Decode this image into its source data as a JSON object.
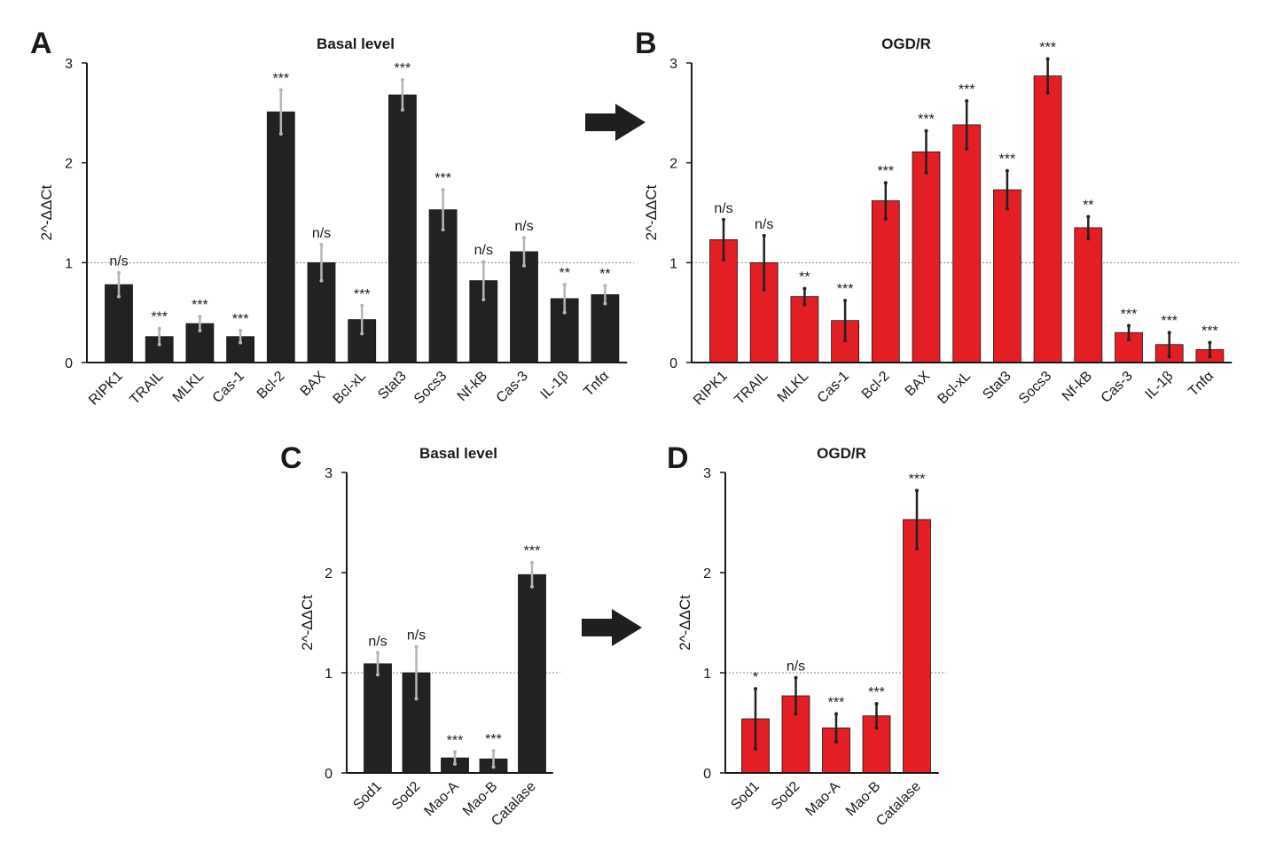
{
  "chart_data": [
    {
      "panel": "A",
      "type": "bar",
      "title": "Basal level",
      "ylabel": "2^-ΔΔCt",
      "ylim": [
        0,
        3
      ],
      "yticks": [
        "0",
        "1",
        "2",
        "3"
      ],
      "reference_line": 1,
      "color": "#222222",
      "error_color": "#b5b5b5",
      "categories": [
        "RIPK1",
        "TRAIL",
        "MLKL",
        "Cas-1",
        "Bcl-2",
        "BAX",
        "Bcl-xL",
        "Stat3",
        "Socs3",
        "Nf-kB",
        "Cas-3",
        "IL-1β",
        "Tnfα"
      ],
      "values": [
        0.78,
        0.26,
        0.39,
        0.26,
        2.51,
        1.0,
        0.43,
        2.68,
        1.53,
        0.82,
        1.11,
        0.64,
        0.68
      ],
      "errors": [
        0.12,
        0.08,
        0.07,
        0.06,
        0.22,
        0.18,
        0.14,
        0.15,
        0.2,
        0.19,
        0.14,
        0.14,
        0.09
      ],
      "significance": [
        "n/s",
        "***",
        "***",
        "***",
        "***",
        "n/s",
        "***",
        "***",
        "***",
        "n/s",
        "n/s",
        "**",
        "**"
      ]
    },
    {
      "panel": "B",
      "type": "bar",
      "title": "OGD/R",
      "ylabel": "2^-ΔΔCt",
      "ylim": [
        0,
        3
      ],
      "yticks": [
        "0",
        "1",
        "2",
        "3"
      ],
      "reference_line": 1,
      "color": "#e31e24",
      "error_color": "#222222",
      "categories": [
        "RIPK1",
        "TRAIL",
        "MLKL",
        "Cas-1",
        "Bcl-2",
        "BAX",
        "Bcl-xL",
        "Stat3",
        "Socs3",
        "Nf-kB",
        "Cas-3",
        "IL-1β",
        "Tnfα"
      ],
      "values": [
        1.23,
        1.0,
        0.66,
        0.42,
        1.62,
        2.11,
        2.38,
        1.73,
        2.87,
        1.35,
        0.3,
        0.18,
        0.13
      ],
      "errors": [
        0.2,
        0.27,
        0.08,
        0.2,
        0.18,
        0.21,
        0.24,
        0.19,
        0.17,
        0.11,
        0.07,
        0.12,
        0.07
      ],
      "significance": [
        "n/s",
        "n/s",
        "**",
        "***",
        "***",
        "***",
        "***",
        "***",
        "***",
        "**",
        "***",
        "***",
        "***"
      ]
    },
    {
      "panel": "C",
      "type": "bar",
      "title": "Basal level",
      "ylabel": "2^-ΔΔCt",
      "ylim": [
        0,
        3
      ],
      "yticks": [
        "0",
        "1",
        "2",
        "3"
      ],
      "reference_line": 1,
      "color": "#222222",
      "error_color": "#b5b5b5",
      "categories": [
        "Sod1",
        "Sod2",
        "Mao-A",
        "Mao-B",
        "Catalase"
      ],
      "values": [
        1.09,
        1.0,
        0.15,
        0.14,
        1.98
      ],
      "errors": [
        0.11,
        0.26,
        0.06,
        0.08,
        0.12
      ],
      "significance": [
        "n/s",
        "n/s",
        "***",
        "***",
        "***"
      ]
    },
    {
      "panel": "D",
      "type": "bar",
      "title": "OGD/R",
      "ylabel": "2^-ΔΔCt",
      "ylim": [
        0,
        3
      ],
      "yticks": [
        "0",
        "1",
        "2",
        "3"
      ],
      "reference_line": 1,
      "color": "#e31e24",
      "error_color": "#222222",
      "categories": [
        "Sod1",
        "Sod2",
        "Mao-A",
        "Mao-B",
        "Catalase"
      ],
      "values": [
        0.54,
        0.77,
        0.45,
        0.57,
        2.53
      ],
      "errors": [
        0.3,
        0.18,
        0.14,
        0.12,
        0.29
      ],
      "significance": [
        "*",
        "n/s",
        "***",
        "***",
        "***"
      ]
    }
  ],
  "arrow_icons": [
    "right-arrow-icon",
    "right-arrow-icon"
  ]
}
